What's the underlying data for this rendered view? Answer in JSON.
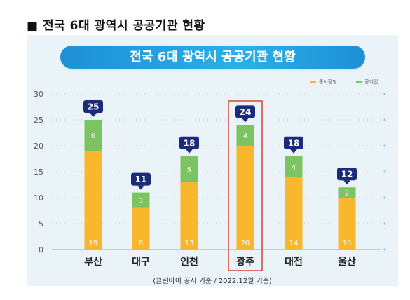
{
  "heading": "■ 전국 6대 광역시 공공기관 현황",
  "colors": {
    "private": "#f8b72c",
    "public": "#7cc462",
    "pill": "#1e8fd6",
    "badge": "#1c2a7c",
    "highlight": "#d9453a"
  },
  "chart_data": {
    "type": "bar",
    "stacked": true,
    "title": "전국 6대 광역시 공공기관 현황",
    "categories": [
      "부산",
      "대구",
      "인천",
      "광주",
      "대전",
      "울산"
    ],
    "series": [
      {
        "name": "준시장형",
        "values": [
          19,
          8,
          13,
          20,
          14,
          10
        ]
      },
      {
        "name": "공기업",
        "values": [
          6,
          3,
          5,
          4,
          4,
          2
        ]
      }
    ],
    "totals": [
      25,
      11,
      18,
      24,
      18,
      12
    ],
    "yticks": [
      0,
      5,
      10,
      15,
      20,
      25,
      30
    ],
    "ylim": [
      0,
      30
    ],
    "highlight_category": "광주",
    "grid": false,
    "legend_position": "top-right",
    "source": "(클린아이 공시 기준 / 2022.12월 기준)"
  }
}
